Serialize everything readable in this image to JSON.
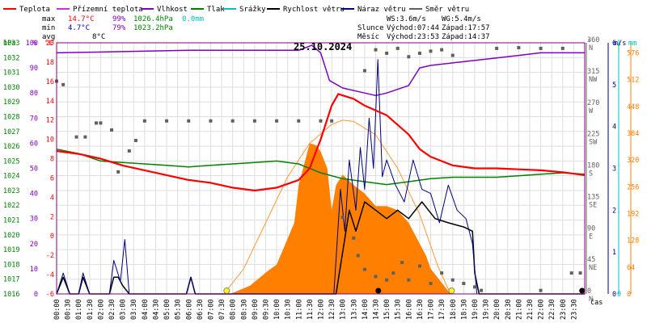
{
  "legend": [
    {
      "name": "Teplota",
      "color": "#ff0000"
    },
    {
      "name": "Přízemní teplota",
      "color": "#cc33cc"
    },
    {
      "name": "Vlhkost",
      "color": "#8000c0"
    },
    {
      "name": "Tlak",
      "color": "#008000"
    },
    {
      "name": "Srážky",
      "color": "#00c0c0"
    },
    {
      "name": "Rychlost větru",
      "color": "#000000"
    },
    {
      "name": "Náraz větru",
      "color": "#000080"
    },
    {
      "name": "Směr větru",
      "color": "#606060"
    }
  ],
  "stats": {
    "max": {
      "label": "max",
      "temp": "14.7°C",
      "hum": "99%",
      "press": "1026.4hPa",
      "rain": "0.0mm"
    },
    "min": {
      "label": "min",
      "temp": "4.7°C",
      "hum": "79%",
      "press": "1023.2hPa"
    },
    "avg": {
      "label": "avg",
      "temp": "8°C"
    }
  },
  "wind_info": {
    "ws": "WS:3.6m/s",
    "wg": "WG:5.4m/s"
  },
  "sun": {
    "label": "Slunce",
    "rise": "Východ:07:44",
    "set": "Západ:17:57"
  },
  "moon": {
    "label": "Měsíc",
    "rise": "Východ:23:53",
    "set": "Západ:14:37"
  },
  "date": "25.10.2024",
  "time_axis_label": "čas",
  "colors": {
    "hpa": "#008000",
    "pct": "#8000c0",
    "temp": "#ff0000",
    "wind": "#000080",
    "rain": "#00c0c0",
    "sun": "#ff8000",
    "dir": "#606060",
    "frame": "#800080"
  },
  "chart_data": {
    "type": "line",
    "x_ticks": [
      "00:00",
      "00:30",
      "01:00",
      "01:30",
      "02:00",
      "02:30",
      "03:00",
      "03:30",
      "04:00",
      "04:30",
      "05:00",
      "05:30",
      "06:00",
      "06:30",
      "07:00",
      "07:30",
      "08:00",
      "08:30",
      "09:00",
      "09:30",
      "10:00",
      "10:30",
      "11:00",
      "11:30",
      "12:00",
      "12:30",
      "13:00",
      "13:30",
      "14:00",
      "14:30",
      "15:00",
      "15:30",
      "16:00",
      "16:30",
      "17:00",
      "17:30",
      "18:00",
      "18:30",
      "19:00",
      "19:30",
      "20:00",
      "20:30",
      "21:00",
      "21:30",
      "22:00",
      "22:30",
      "23:00",
      "23:30"
    ],
    "axes": {
      "pressure_hpa": {
        "ticks": [
          "1016",
          "1017",
          "1018",
          "1019",
          "1020",
          "1021",
          "1022",
          "1023",
          "1024",
          "1025",
          "1026",
          "1027",
          "1028",
          "1029",
          "1030",
          "1031",
          "1032",
          "1033"
        ],
        "ylim": [
          1016,
          1033
        ],
        "unit": "hPa"
      },
      "humidity_pct": {
        "ticks": [
          "0",
          "10",
          "20",
          "30",
          "40",
          "50",
          "60",
          "70",
          "80",
          "90",
          "100"
        ],
        "ylim": [
          0,
          100
        ],
        "unit": "%"
      },
      "temperature_c": {
        "ticks": [
          "-6",
          "-4",
          "-2",
          "0",
          "2",
          "4",
          "6",
          "8",
          "10",
          "12",
          "14",
          "16",
          "18",
          "20"
        ],
        "ylim": [
          -6,
          20
        ],
        "unit": "°C"
      },
      "wind_dir_deg": {
        "ticks": [
          "0 N",
          "45 NE",
          "90 E",
          "135 SE",
          "180 S",
          "225 SW",
          "270 W",
          "315 NW",
          "360 N"
        ],
        "ylim": [
          0,
          360
        ],
        "unit": "°"
      },
      "wind_ms": {
        "ticks": [
          "0",
          "1",
          "2",
          "3",
          "4",
          "5",
          "6"
        ],
        "ylim": [
          0,
          6
        ],
        "unit": "m/s"
      },
      "rain_mm": {
        "ticks": [
          "0",
          "1"
        ],
        "ylim": [
          0,
          1
        ],
        "unit": "mm"
      },
      "solar": {
        "ticks": [
          "0",
          "64",
          "128",
          "192",
          "256",
          "320",
          "384",
          "448",
          "512",
          "576"
        ],
        "ylim": [
          0,
          600
        ]
      }
    },
    "series": [
      {
        "name": "Teplota",
        "axis": "temperature_c",
        "points": [
          [
            0,
            8.8
          ],
          [
            1,
            8.5
          ],
          [
            2,
            8.0
          ],
          [
            3,
            7.3
          ],
          [
            4,
            6.8
          ],
          [
            5,
            6.3
          ],
          [
            6,
            5.8
          ],
          [
            7,
            5.5
          ],
          [
            8,
            5.0
          ],
          [
            9,
            4.7
          ],
          [
            10,
            5.0
          ],
          [
            11,
            5.8
          ],
          [
            11.5,
            7.0
          ],
          [
            12,
            10.0
          ],
          [
            12.5,
            13.5
          ],
          [
            12.8,
            14.7
          ],
          [
            13.5,
            14.2
          ],
          [
            14,
            13.5
          ],
          [
            15,
            12.5
          ],
          [
            16,
            10.5
          ],
          [
            16.5,
            9.0
          ],
          [
            17,
            8.2
          ],
          [
            18,
            7.3
          ],
          [
            19,
            7.0
          ],
          [
            20,
            7.0
          ],
          [
            21,
            6.9
          ],
          [
            22,
            6.8
          ],
          [
            23,
            6.6
          ],
          [
            24,
            6.3
          ]
        ]
      },
      {
        "name": "Vlhkost",
        "axis": "humidity_pct",
        "points": [
          [
            0,
            96
          ],
          [
            3,
            96.5
          ],
          [
            6,
            97
          ],
          [
            9,
            97
          ],
          [
            11,
            97
          ],
          [
            11.6,
            99
          ],
          [
            12,
            96
          ],
          [
            12.4,
            85
          ],
          [
            13,
            82
          ],
          [
            14,
            80
          ],
          [
            14.5,
            79
          ],
          [
            15,
            80
          ],
          [
            16,
            83
          ],
          [
            16.5,
            90
          ],
          [
            17,
            91
          ],
          [
            18,
            92
          ],
          [
            20,
            94
          ],
          [
            21,
            95
          ],
          [
            22,
            96
          ],
          [
            23,
            96
          ],
          [
            24,
            96
          ]
        ]
      },
      {
        "name": "Tlak",
        "axis": "pressure_hpa",
        "points": [
          [
            0,
            1025.8
          ],
          [
            1,
            1025.5
          ],
          [
            2,
            1025.0
          ],
          [
            3,
            1024.9
          ],
          [
            4,
            1024.8
          ],
          [
            5,
            1024.7
          ],
          [
            6,
            1024.6
          ],
          [
            7,
            1024.7
          ],
          [
            8,
            1024.8
          ],
          [
            9,
            1024.9
          ],
          [
            10,
            1025.0
          ],
          [
            11,
            1024.8
          ],
          [
            12,
            1024.2
          ],
          [
            13,
            1023.8
          ],
          [
            14,
            1023.6
          ],
          [
            15,
            1023.4
          ],
          [
            16,
            1023.6
          ],
          [
            17,
            1023.8
          ],
          [
            18,
            1023.9
          ],
          [
            20,
            1023.9
          ],
          [
            22,
            1024.1
          ],
          [
            23,
            1024.2
          ],
          [
            24,
            1024.1
          ]
        ]
      },
      {
        "name": "Rychlost větru",
        "axis": "wind_ms",
        "points": [
          [
            0,
            0
          ],
          [
            0.3,
            0.4
          ],
          [
            0.6,
            0
          ],
          [
            1.0,
            0
          ],
          [
            1.2,
            0.4
          ],
          [
            1.5,
            0
          ],
          [
            2.4,
            0
          ],
          [
            2.6,
            0.4
          ],
          [
            2.8,
            0.4
          ],
          [
            3.0,
            0.2
          ],
          [
            3.3,
            0
          ],
          [
            5.9,
            0
          ],
          [
            6.1,
            0.4
          ],
          [
            6.3,
            0
          ],
          [
            12.7,
            0
          ],
          [
            13.0,
            1.0
          ],
          [
            13.3,
            2.0
          ],
          [
            13.6,
            1.5
          ],
          [
            14.0,
            2.2
          ],
          [
            14.5,
            2.0
          ],
          [
            15.0,
            1.8
          ],
          [
            15.5,
            2.0
          ],
          [
            16.0,
            1.8
          ],
          [
            16.6,
            2.2
          ],
          [
            17.2,
            1.8
          ],
          [
            17.8,
            1.7
          ],
          [
            18.5,
            1.6
          ],
          [
            18.9,
            1.5
          ],
          [
            19.0,
            0.5
          ],
          [
            19.2,
            0
          ],
          [
            24,
            0
          ]
        ]
      },
      {
        "name": "Náraz větru",
        "axis": "wind_ms",
        "points": [
          [
            0,
            0
          ],
          [
            0.3,
            0.5
          ],
          [
            0.6,
            0
          ],
          [
            1.0,
            0
          ],
          [
            1.2,
            0.5
          ],
          [
            1.5,
            0
          ],
          [
            2.4,
            0
          ],
          [
            2.6,
            0.8
          ],
          [
            2.9,
            0.3
          ],
          [
            3.1,
            1.3
          ],
          [
            3.3,
            0
          ],
          [
            5.9,
            0
          ],
          [
            6.1,
            0.4
          ],
          [
            6.3,
            0
          ],
          [
            12.6,
            0
          ],
          [
            12.9,
            2.5
          ],
          [
            13.1,
            1.5
          ],
          [
            13.3,
            3.2
          ],
          [
            13.6,
            2.0
          ],
          [
            13.8,
            3.5
          ],
          [
            14.0,
            2.5
          ],
          [
            14.2,
            4.2
          ],
          [
            14.4,
            3.0
          ],
          [
            14.6,
            5.6
          ],
          [
            14.8,
            2.8
          ],
          [
            15.0,
            3.2
          ],
          [
            15.4,
            2.6
          ],
          [
            15.8,
            2.2
          ],
          [
            16.2,
            3.2
          ],
          [
            16.6,
            2.5
          ],
          [
            17.0,
            2.4
          ],
          [
            17.4,
            1.7
          ],
          [
            17.8,
            2.6
          ],
          [
            18.2,
            2.0
          ],
          [
            18.6,
            1.8
          ],
          [
            18.9,
            1.2
          ],
          [
            19.1,
            0
          ],
          [
            24,
            0
          ]
        ]
      },
      {
        "name": "Sluneční záření",
        "axis": "solar",
        "points": [
          [
            7.9,
            0
          ],
          [
            8.8,
            20
          ],
          [
            9.6,
            55
          ],
          [
            10.0,
            70
          ],
          [
            10.4,
            120
          ],
          [
            10.8,
            170
          ],
          [
            11.0,
            260
          ],
          [
            11.3,
            320
          ],
          [
            11.5,
            360
          ],
          [
            11.8,
            355
          ],
          [
            12.0,
            340
          ],
          [
            12.3,
            300
          ],
          [
            12.5,
            200
          ],
          [
            12.7,
            260
          ],
          [
            13.0,
            285
          ],
          [
            13.5,
            260
          ],
          [
            14.0,
            240
          ],
          [
            14.5,
            210
          ],
          [
            15.0,
            210
          ],
          [
            15.5,
            200
          ],
          [
            16.0,
            170
          ],
          [
            16.5,
            120
          ],
          [
            16.8,
            90
          ],
          [
            17.0,
            60
          ],
          [
            17.3,
            40
          ],
          [
            17.6,
            20
          ],
          [
            17.9,
            0
          ]
        ]
      },
      {
        "name": "Teoretické záření",
        "axis": "solar",
        "points": [
          [
            7.6,
            0
          ],
          [
            8.5,
            60
          ],
          [
            9.5,
            170
          ],
          [
            10.5,
            280
          ],
          [
            11.5,
            360
          ],
          [
            12.5,
            405
          ],
          [
            13.0,
            415
          ],
          [
            13.5,
            412
          ],
          [
            14.5,
            380
          ],
          [
            15.5,
            300
          ],
          [
            16.5,
            190
          ],
          [
            17.3,
            70
          ],
          [
            17.9,
            0
          ]
        ]
      },
      {
        "name": "Směr větru",
        "axis": "wind_dir_deg",
        "points": [
          [
            0,
            305
          ],
          [
            0.3,
            300
          ],
          [
            0.9,
            225
          ],
          [
            1.3,
            225
          ],
          [
            1.8,
            245
          ],
          [
            2.0,
            245
          ],
          [
            2.5,
            235
          ],
          [
            2.8,
            175
          ],
          [
            3.3,
            205
          ],
          [
            3.6,
            220
          ],
          [
            4,
            248
          ],
          [
            5,
            248
          ],
          [
            6,
            248
          ],
          [
            7,
            248
          ],
          [
            8,
            248
          ],
          [
            9,
            248
          ],
          [
            10,
            248
          ],
          [
            11,
            248
          ],
          [
            12,
            248
          ],
          [
            12.5,
            248
          ],
          [
            13.0,
            110
          ],
          [
            13.5,
            80
          ],
          [
            13.7,
            55
          ],
          [
            14.0,
            35
          ],
          [
            14.5,
            25
          ],
          [
            15.0,
            20
          ],
          [
            15.3,
            30
          ],
          [
            15.7,
            45
          ],
          [
            16.0,
            20
          ],
          [
            16.5,
            40
          ],
          [
            17.0,
            15
          ],
          [
            17.5,
            30
          ],
          [
            18.0,
            20
          ],
          [
            18.5,
            15
          ],
          [
            19.0,
            10
          ],
          [
            19.3,
            5
          ],
          [
            22.0,
            5
          ],
          [
            23.4,
            30
          ],
          [
            23.8,
            30
          ]
        ]
      },
      {
        "name": "Směr větru (horní)",
        "axis": "wind_dir_deg",
        "points": [
          [
            14.0,
            320
          ],
          [
            14.5,
            350
          ],
          [
            15.0,
            345
          ],
          [
            15.5,
            352
          ],
          [
            16.0,
            340
          ],
          [
            16.5,
            345
          ],
          [
            17.0,
            348
          ],
          [
            17.5,
            350
          ],
          [
            18.0,
            342
          ],
          [
            20.0,
            352
          ],
          [
            21.0,
            353
          ],
          [
            22.0,
            352
          ],
          [
            23.0,
            352
          ]
        ]
      }
    ]
  }
}
